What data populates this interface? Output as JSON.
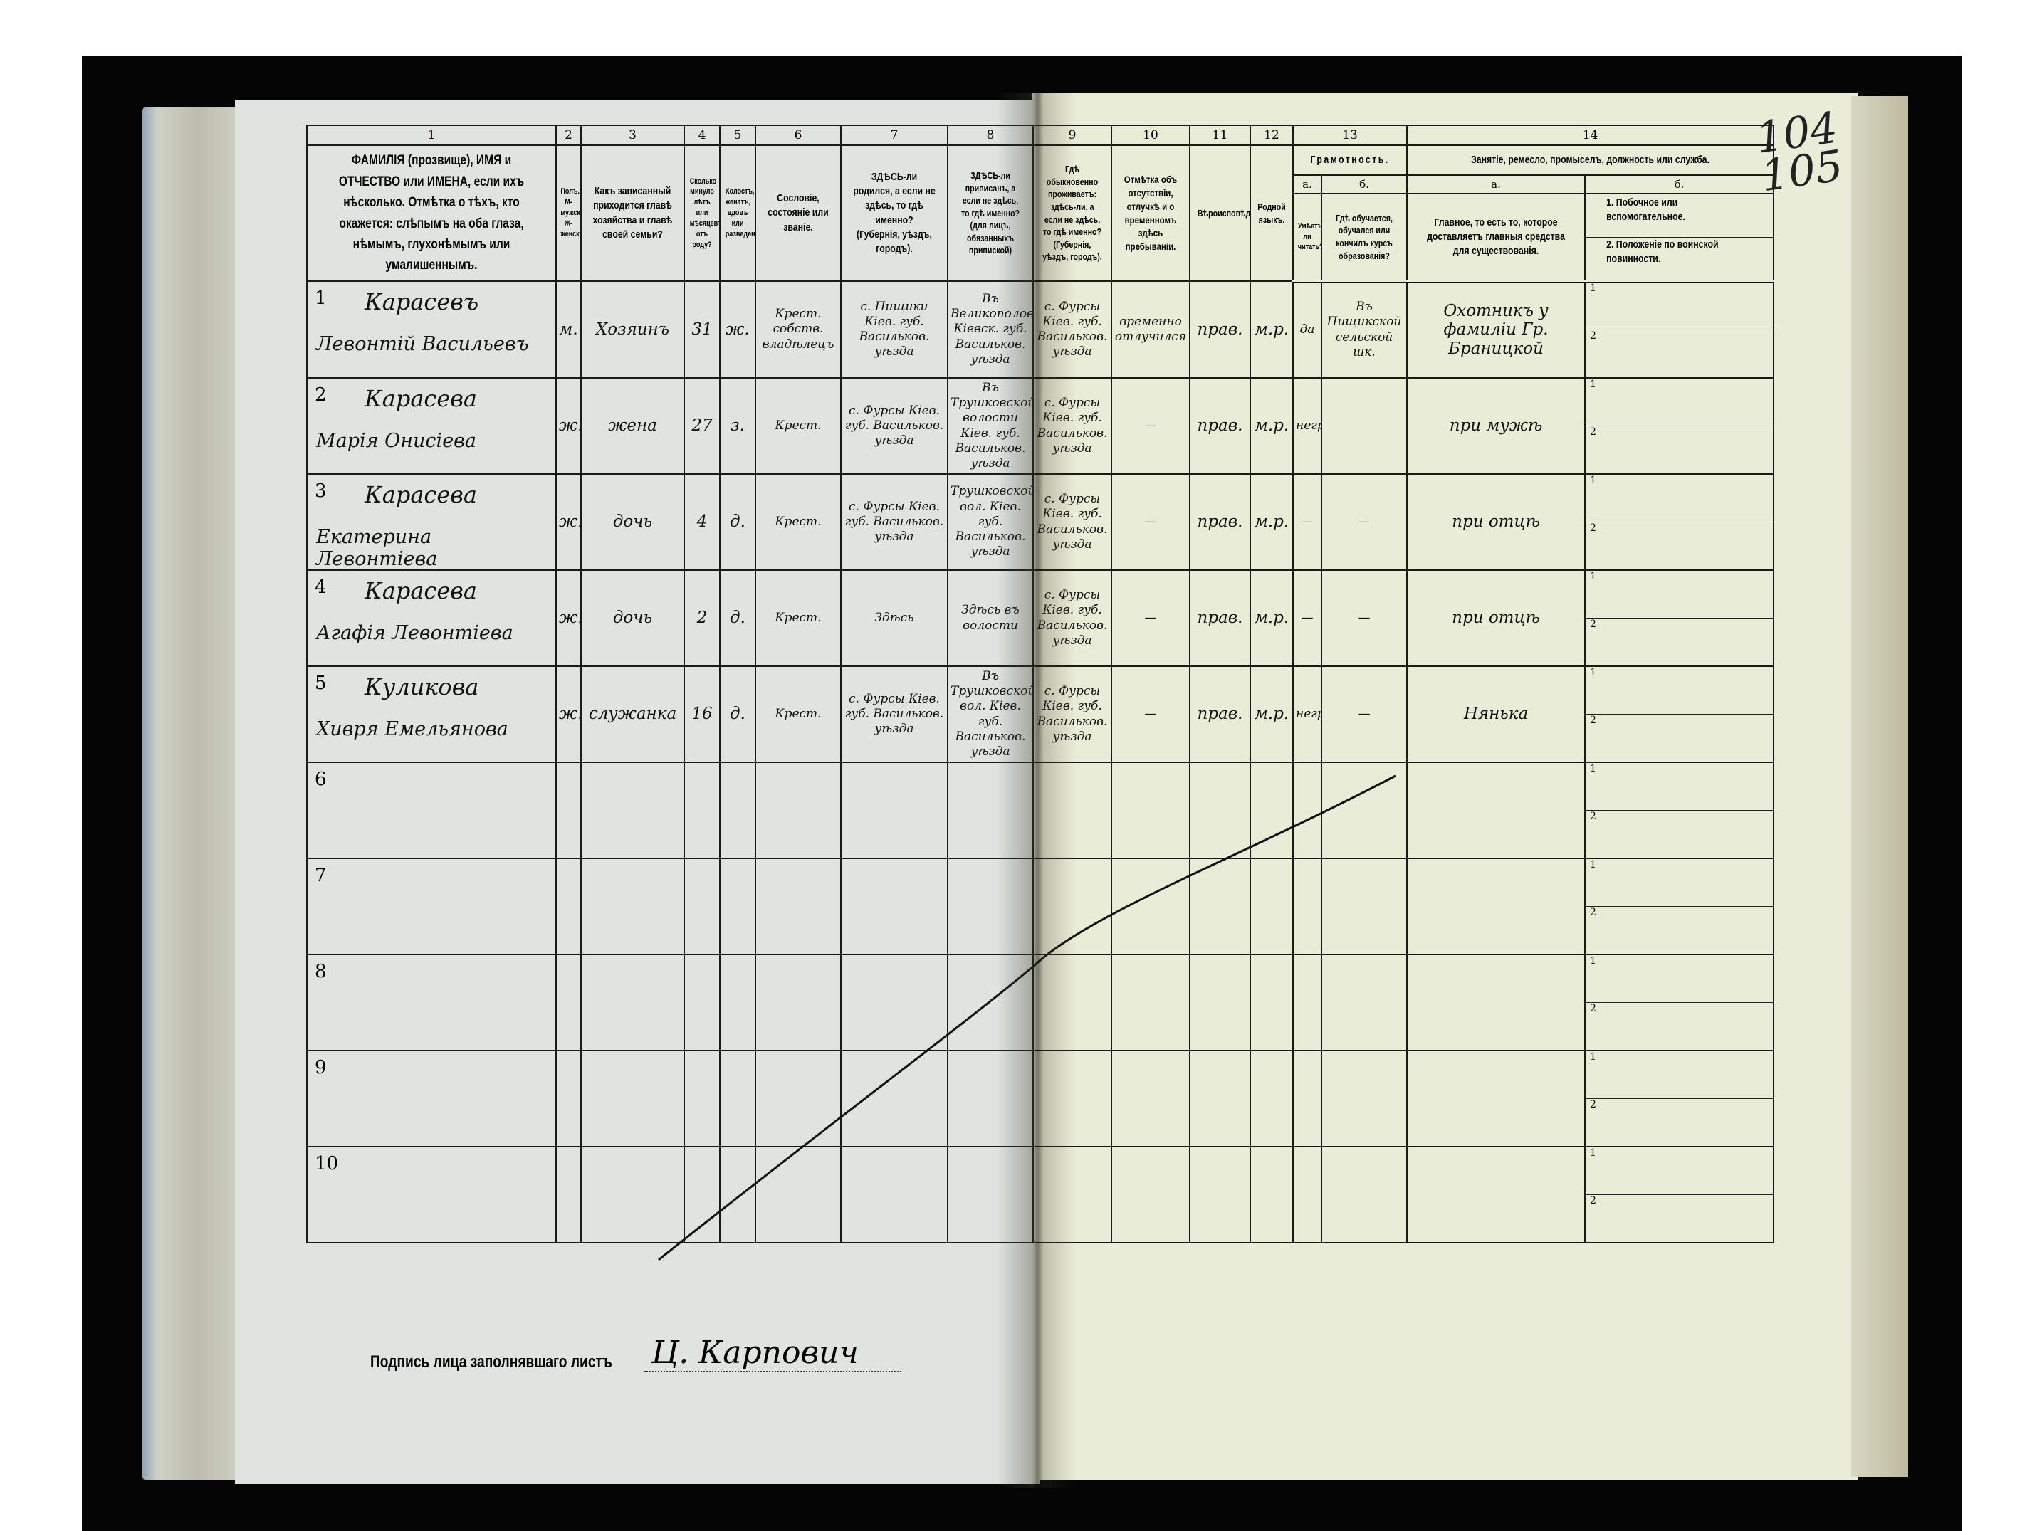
{
  "page_numbers": [
    "104",
    "105"
  ],
  "header": {
    "numbers": [
      "1",
      "2",
      "3",
      "4",
      "5",
      "6",
      "7",
      "8",
      "9",
      "10",
      "11",
      "12",
      "13",
      "14"
    ],
    "col1": "ФАМИЛIЯ (прозвище), ИМЯ и ОТЧЕСТВО или ИМЕНА, если ихъ нѣсколько. Отмѣтка о тѣхъ, кто окажется: слѣпымъ на оба глаза, нѣмымъ, глухонѣмымъ или умалишеннымъ.",
    "col2": "Полъ. М-мужской. Ж-женскiй.",
    "col3": "Какъ записанный приходится главѣ хозяйства и главѣ своей семьи?",
    "col4": "Сколько минуло лѣтъ или мѣсяцевъ отъ роду?",
    "col5": "Холостъ, женатъ, вдовъ или разведенъ.",
    "col6": "Сословiе, состоянiе или званiе.",
    "col7": "ЗДѢСЬ-ли родился, а если не здѣсь, то гдѣ именно? (Губернiя, уѣздъ, городъ).",
    "col8": "ЗДѢСЬ-ли приписанъ, а если не здѣсь, то гдѣ именно? (для лицъ, обязанныхъ припиской)",
    "col9": "Гдѣ обыкновенно проживаетъ: здѣсь-ли, а если не здѣсь, то гдѣ именно? (Губернiя, уѣздъ, городъ).",
    "col10": "Отмѣтка объ отсутствiи, отлучкѣ и о временномъ здѣсь пребыванiи.",
    "col11": "Вѣроисповѣданiе.",
    "col12": "Родной языкъ.",
    "col13": "Грамотность.",
    "col13a_letter": "а.",
    "col13a": "Умѣетъ-ли читать?",
    "col13b_letter": "б.",
    "col13b": "Гдѣ обучается, обучался или кончилъ курсъ образованiя?",
    "col14": "Занятiе, ремесло, промыселъ, должность или служба.",
    "col14a_letter": "а.",
    "col14a": "Главное, то есть то, которое доставляетъ главныя средства для существованiя.",
    "col14b_letter": "б.",
    "col14b_1": "1. Побочное или вспомогательное.",
    "col14b_2": "2. Положенiе по воинской повинности."
  },
  "sub_labels": [
    "1",
    "2"
  ],
  "rows": [
    {
      "num": "1",
      "surname": "Карасевъ",
      "given": "Левонтiй Васильевъ",
      "sex": "м.",
      "relation": "Хозяинъ",
      "age": "31",
      "marital": "ж.",
      "estate": "Крест. собств. владѣлецъ",
      "birthplace": "с. Пищики Кiев. губ. Васильков. уѣзда",
      "registered": "Въ Великополовецкой Кiевск. губ. Васильков. уѣзда",
      "residence": "с. Фурсы Кiев. губ. Васильков. уѣзда",
      "absence": "временно отлучился",
      "religion": "прав.",
      "language": "м.р.",
      "literate": "да",
      "education": "Въ Пищикской сельской шк.",
      "occupation": "Охотникъ у фамилiи Гр. Браницкой",
      "secondary": "",
      "military": ""
    },
    {
      "num": "2",
      "surname": "Карасева",
      "given": "Марiя Онисiева",
      "sex": "ж.",
      "relation": "жена",
      "age": "27",
      "marital": "з.",
      "estate": "Крест.",
      "birthplace": "с. Фурсы Кiев. губ. Васильков. уѣзда",
      "registered": "Въ Трушковской волости Кiев. губ. Васильков. уѣзда",
      "residence": "с. Фурсы Кiев. губ. Васильков. уѣзда",
      "absence": "—",
      "religion": "прав.",
      "language": "м.р.",
      "literate": "неграм.",
      "education": "",
      "occupation": "при мужѣ",
      "secondary": "",
      "military": ""
    },
    {
      "num": "3",
      "surname": "Карасева",
      "given": "Екатерина Левонтiева",
      "sex": "ж.",
      "relation": "дочь",
      "age": "4",
      "marital": "д.",
      "estate": "Крест.",
      "birthplace": "с. Фурсы Кiев. губ. Васильков. уѣзда",
      "registered": "Трушковской вол. Кiев. губ. Васильков. уѣзда",
      "residence": "с. Фурсы Кiев. губ. Васильков. уѣзда",
      "absence": "—",
      "religion": "прав.",
      "language": "м.р.",
      "literate": "—",
      "education": "—",
      "occupation": "при отцѣ",
      "secondary": "",
      "military": ""
    },
    {
      "num": "4",
      "surname": "Карасева",
      "given": "Агафiя Левонтiева",
      "sex": "ж.",
      "relation": "дочь",
      "age": "2",
      "marital": "д.",
      "estate": "Крест.",
      "birthplace": "Здѣсь",
      "registered": "Здѣсь въ волости",
      "residence": "с. Фурсы Кiев. губ. Васильков. уѣзда",
      "absence": "—",
      "religion": "прав.",
      "language": "м.р.",
      "literate": "—",
      "education": "—",
      "occupation": "при отцѣ",
      "secondary": "",
      "military": ""
    },
    {
      "num": "5",
      "surname": "Куликова",
      "given": "Хивря Емельянова",
      "sex": "ж.",
      "relation": "служанка",
      "age": "16",
      "marital": "д.",
      "estate": "Крест.",
      "birthplace": "с. Фурсы Кiев. губ. Васильков. уѣзда",
      "registered": "Въ Трушковской вол. Кiев. губ. Васильков. уѣзда",
      "residence": "с. Фурсы Кiев. губ. Васильков. уѣзда",
      "absence": "—",
      "religion": "прав.",
      "language": "м.р.",
      "literate": "неграм.",
      "education": "—",
      "occupation": "Нянька",
      "secondary": "",
      "military": ""
    },
    {
      "num": "6"
    },
    {
      "num": "7"
    },
    {
      "num": "8"
    },
    {
      "num": "9"
    },
    {
      "num": "10"
    }
  ],
  "signature": {
    "label": "Подпись лица заполнявшаго листъ",
    "name": "Ц. Карпович"
  }
}
